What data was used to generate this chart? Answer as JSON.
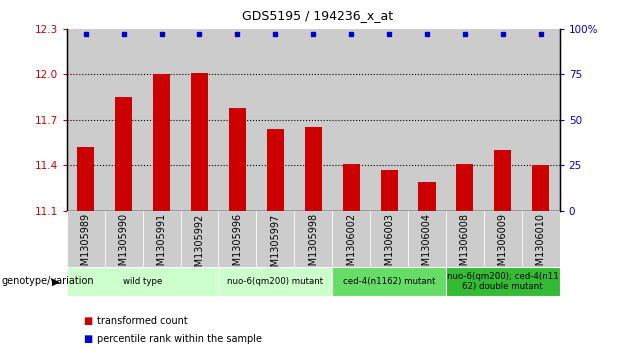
{
  "title": "GDS5195 / 194236_x_at",
  "samples": [
    "GSM1305989",
    "GSM1305990",
    "GSM1305991",
    "GSM1305992",
    "GSM1305996",
    "GSM1305997",
    "GSM1305998",
    "GSM1306002",
    "GSM1306003",
    "GSM1306004",
    "GSM1306008",
    "GSM1306009",
    "GSM1306010"
  ],
  "bar_values": [
    11.52,
    11.85,
    12.0,
    12.01,
    11.78,
    11.64,
    11.65,
    11.41,
    11.37,
    11.29,
    11.41,
    11.5,
    11.4
  ],
  "percentile_values": [
    100,
    100,
    100,
    100,
    100,
    100,
    100,
    100,
    100,
    100,
    100,
    100,
    100
  ],
  "ylim_left": [
    11.1,
    12.3
  ],
  "ylim_right": [
    0,
    100
  ],
  "yticks_left": [
    11.1,
    11.4,
    11.7,
    12.0,
    12.3
  ],
  "yticks_right": [
    0,
    25,
    50,
    75,
    100
  ],
  "ytick_labels_right": [
    "0",
    "25",
    "50",
    "75",
    "100%"
  ],
  "bar_color": "#cc0000",
  "percentile_color": "#0000cc",
  "col_bg_color": "#cccccc",
  "plot_bg_color": "#ffffff",
  "groups": [
    {
      "label": "wild type",
      "indices": [
        0,
        1,
        2,
        3
      ],
      "color": "#ccffcc"
    },
    {
      "label": "nuo-6(qm200) mutant",
      "indices": [
        4,
        5,
        6
      ],
      "color": "#ccffcc"
    },
    {
      "label": "ced-4(n1162) mutant",
      "indices": [
        7,
        8,
        9
      ],
      "color": "#66dd66"
    },
    {
      "label": "nuo-6(qm200); ced-4(n11\n62) double mutant",
      "indices": [
        10,
        11,
        12
      ],
      "color": "#33bb33"
    }
  ],
  "genotype_label": "genotype/variation",
  "legend_bar_label": "transformed count",
  "legend_dot_label": "percentile rank within the sample",
  "dotted_lines": [
    11.4,
    11.7,
    12.0
  ],
  "grid_color": "#000000",
  "font_size": 7.5,
  "title_fontsize": 9
}
